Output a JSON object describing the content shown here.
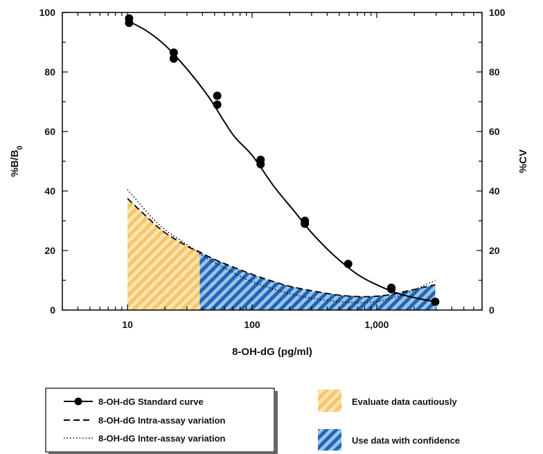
{
  "chart_data": {
    "type": "line",
    "x_scale": "log",
    "xlim": [
      3,
      7000
    ],
    "ylim": [
      0,
      100
    ],
    "y2lim": [
      0,
      100
    ],
    "xlabel": "8-OH-dG (pg/ml)",
    "ylabel": "%B/B",
    "ylabel_sub": "0",
    "y2label": "%CV",
    "x_ticks": [
      10,
      100,
      1000
    ],
    "x_tick_labels": [
      "10",
      "100",
      "1,000"
    ],
    "y_ticks": [
      0,
      20,
      40,
      60,
      80,
      100
    ],
    "y_tick_labels": [
      "0",
      "20",
      "40",
      "60",
      "80",
      "100"
    ],
    "y2_tick_labels": [
      "0",
      "20",
      "40",
      "60",
      "80",
      "100"
    ],
    "grid": false,
    "series": [
      {
        "name": "8-OH-dG Standard curve",
        "style": "solid-with-markers",
        "axis": "left",
        "points": [
          [
            10.3,
            98
          ],
          [
            10.3,
            96.5
          ],
          [
            23.5,
            86.5
          ],
          [
            23.5,
            84.5
          ],
          [
            52.5,
            72
          ],
          [
            52.5,
            69
          ],
          [
            117,
            50.5
          ],
          [
            117,
            49
          ],
          [
            265,
            30
          ],
          [
            265,
            29
          ],
          [
            590,
            15.5
          ],
          [
            1310,
            7.5
          ],
          [
            1310,
            7
          ],
          [
            2950,
            2.8
          ]
        ],
        "curve": [
          [
            10,
            97.2
          ],
          [
            14,
            94
          ],
          [
            20,
            89
          ],
          [
            30,
            81
          ],
          [
            45,
            71.5
          ],
          [
            70,
            59
          ],
          [
            100,
            52
          ],
          [
            150,
            41.5
          ],
          [
            220,
            33
          ],
          [
            300,
            26
          ],
          [
            450,
            18.5
          ],
          [
            700,
            12
          ],
          [
            1000,
            8.5
          ],
          [
            1500,
            5.5
          ],
          [
            2200,
            3.8
          ],
          [
            2950,
            2.8
          ]
        ]
      },
      {
        "name": "8-OH-dG Intra-assay variation",
        "style": "dashed",
        "axis": "right",
        "values_xy": [
          [
            10,
            37.5
          ],
          [
            15,
            30.5
          ],
          [
            20,
            26
          ],
          [
            30,
            21.5
          ],
          [
            38,
            19.5
          ],
          [
            50,
            17
          ],
          [
            75,
            14
          ],
          [
            100,
            12
          ],
          [
            150,
            9.5
          ],
          [
            200,
            8
          ],
          [
            300,
            6.5
          ],
          [
            500,
            5
          ],
          [
            800,
            4.5
          ],
          [
            1200,
            5
          ],
          [
            1800,
            6.5
          ],
          [
            2950,
            8.5
          ]
        ]
      },
      {
        "name": "8-OH-dG Inter-assay variation",
        "style": "dotted",
        "axis": "right",
        "values_xy": [
          [
            10,
            40.5
          ],
          [
            15,
            32
          ],
          [
            20,
            27
          ],
          [
            30,
            22
          ],
          [
            38,
            19
          ],
          [
            50,
            16
          ],
          [
            75,
            12
          ],
          [
            100,
            9.5
          ],
          [
            150,
            7
          ],
          [
            200,
            5.5
          ],
          [
            300,
            4
          ],
          [
            500,
            2.8
          ],
          [
            800,
            2.5
          ],
          [
            1200,
            3.5
          ],
          [
            1800,
            6
          ],
          [
            2950,
            10
          ]
        ]
      }
    ],
    "regions": [
      {
        "name": "Evaluate data cautiously",
        "x_from": 10,
        "x_to": 38,
        "color": "#f5c66b",
        "pattern": "diagonal-hatch"
      },
      {
        "name": "Use data with confidence",
        "x_from": 38,
        "x_to": 2950,
        "color": "#2468b8",
        "pattern": "diagonal-hatch"
      }
    ],
    "legend": {
      "placement": "bottom-left",
      "entries": [
        "8-OH-dG Standard curve",
        "8-OH-dG Intra-assay variation",
        "8-OH-dG Inter-assay variation"
      ]
    },
    "region_legend": {
      "placement": "bottom-right",
      "entries": [
        "Evaluate data cautiously",
        "Use data with confidence"
      ]
    }
  }
}
